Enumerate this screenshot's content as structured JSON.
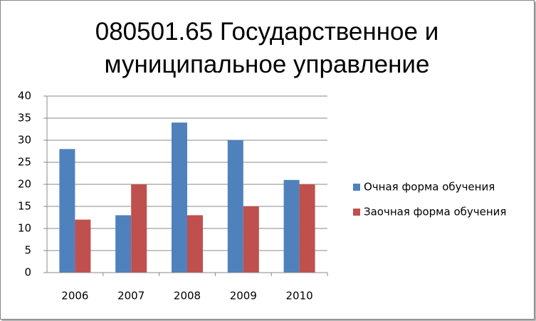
{
  "chart_data": {
    "type": "bar",
    "title": "080501.65 Государственное и муниципальное управление",
    "categories": [
      "2006",
      "2007",
      "2008",
      "2009",
      "2010"
    ],
    "series": [
      {
        "name": "Очная форма обучения",
        "color": "#4f81bd",
        "values": [
          28,
          13,
          34,
          30,
          21
        ]
      },
      {
        "name": "Заочная форма обучения",
        "color": "#c0504d",
        "values": [
          12,
          20,
          13,
          15,
          20
        ]
      }
    ],
    "ylim": [
      0,
      40
    ],
    "yticks": [
      0,
      5,
      10,
      15,
      20,
      25,
      30,
      35,
      40
    ],
    "grid": true,
    "legend": "right"
  }
}
